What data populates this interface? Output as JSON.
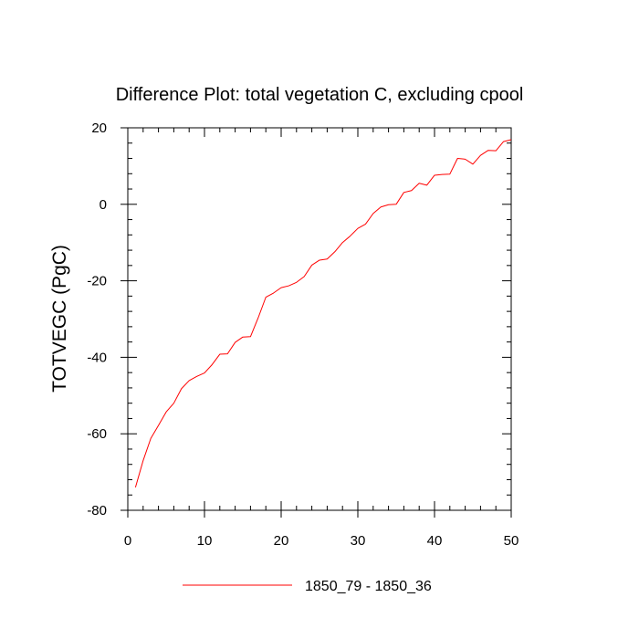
{
  "chart_data": {
    "type": "line",
    "title": "Difference Plot: total vegetation C, excluding cpool",
    "xlabel": "",
    "ylabel": "TOTVEGC  (PgC)",
    "xlim": [
      0,
      50
    ],
    "ylim": [
      -80,
      20
    ],
    "x_ticks": [
      0,
      10,
      20,
      30,
      40,
      50
    ],
    "y_ticks": [
      20,
      0,
      -20,
      -40,
      -60,
      -80
    ],
    "x_tick_labels": [
      "0",
      "10",
      "20",
      "30",
      "40",
      "50"
    ],
    "y_tick_labels": [
      "20",
      "0",
      "-20",
      "-40",
      "-60",
      "-80"
    ],
    "grid": false,
    "legend_position": "bottom-center",
    "series": [
      {
        "name": "1850_79 - 1850_36",
        "color": "#ff0000",
        "x": [
          1,
          2,
          3,
          4,
          5,
          6,
          7,
          8,
          9,
          10,
          11,
          12,
          13,
          14,
          15,
          16,
          17,
          18,
          19,
          20,
          21,
          22,
          23,
          24,
          25,
          26,
          27,
          28,
          29,
          30,
          31,
          32,
          33,
          34,
          35,
          36,
          37,
          38,
          39,
          40,
          41,
          42,
          43,
          44,
          45,
          46,
          47,
          48,
          49,
          50
        ],
        "values": [
          -74.0,
          -67.0,
          -61.2,
          -57.8,
          -54.3,
          -52.0,
          -48.2,
          -46.1,
          -45.0,
          -44.1,
          -41.9,
          -39.2,
          -39.1,
          -36.1,
          -34.7,
          -34.6,
          -29.7,
          -24.3,
          -23.2,
          -21.8,
          -21.3,
          -20.4,
          -18.9,
          -15.9,
          -14.6,
          -14.3,
          -12.4,
          -10.0,
          -8.3,
          -6.3,
          -5.2,
          -2.4,
          -0.7,
          -0.1,
          0.0,
          3.1,
          3.6,
          5.5,
          5.0,
          7.6,
          7.8,
          7.9,
          12.0,
          11.8,
          10.5,
          12.8,
          14.1,
          14.0,
          16.4,
          16.9
        ]
      }
    ]
  }
}
